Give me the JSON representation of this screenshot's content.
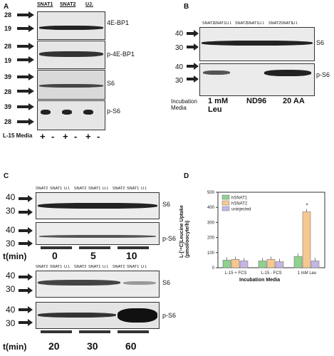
{
  "panels": {
    "a": {
      "letter": "A",
      "groups": [
        "SNAT1",
        "SNAT2",
        "UJ."
      ],
      "blots": [
        {
          "name": "4E-BP1",
          "mw": [
            "28",
            "19"
          ]
        },
        {
          "name": "p-4E-BP1",
          "mw": [
            "28",
            "19"
          ]
        },
        {
          "name": "S6",
          "mw": [
            "39",
            "28"
          ]
        },
        {
          "name": "p-S6",
          "mw": [
            "39",
            "28"
          ]
        }
      ],
      "media_label": "L-15 Media",
      "signs": [
        "+",
        "-",
        "+",
        "-",
        "+",
        "-"
      ]
    },
    "b": {
      "letter": "B",
      "lanes": [
        "SNAT2",
        "SNAT1",
        "U.I.",
        "SNAT2",
        "SNAT1",
        "U.I.",
        "SNAT2",
        "SNAT1",
        "U.I."
      ],
      "blots": [
        {
          "name": "S6",
          "mw": [
            "40",
            "30"
          ]
        },
        {
          "name": "p-S6",
          "mw": [
            "40",
            "30"
          ]
        }
      ],
      "media_label": [
        "Incubation",
        "Media"
      ],
      "conditions": [
        [
          "1 mM",
          "Leu"
        ],
        [
          "ND96"
        ],
        [
          "20 AA"
        ]
      ]
    },
    "c": {
      "letter": "C",
      "lanes": [
        "SNAT2",
        "SNAT1",
        "U.I.",
        "SNAT2",
        "SNAT1",
        "U.I.",
        "SNAT2",
        "SNAT1",
        "U.I."
      ],
      "top_blots": [
        {
          "name": "S6",
          "mw": [
            "40",
            "30"
          ]
        },
        {
          "name": "p-S6",
          "mw": [
            "40",
            "30"
          ]
        }
      ],
      "top_times": [
        "0",
        "5",
        "10"
      ],
      "bottom_blots": [
        {
          "name": "S6",
          "mw": [
            "40",
            "30"
          ]
        },
        {
          "name": "p-S6",
          "mw": [
            "40",
            "30"
          ]
        }
      ],
      "bottom_times": [
        "20",
        "30",
        "60"
      ],
      "time_label": "t(min)"
    },
    "d": {
      "letter": "D",
      "ylabel": [
        "L-[¹⁴C]Leucine Uptake",
        "(pmol/oocyte/h)"
      ],
      "xlabel": "Incubation Media",
      "yticks": [
        "0",
        "100",
        "200",
        "300",
        "400",
        "500"
      ],
      "legend": [
        {
          "name": "hSNAT1",
          "color": "#8fd18f"
        },
        {
          "name": "hSNAT2",
          "color": "#f6c890"
        },
        {
          "name": "uninjected",
          "color": "#c6b6e6"
        }
      ],
      "star": "*"
    }
  },
  "chart_data": {
    "type": "bar",
    "title": "",
    "xlabel": "Incubation Media",
    "ylabel": "L-[14C]Leucine Uptake (pmol/oocyte/h)",
    "ylim": [
      0,
      500
    ],
    "categories": [
      "L-15 + FCS",
      "L-15 - FCS",
      "1 mM Leu"
    ],
    "series": [
      {
        "name": "hSNAT1",
        "values": [
          50,
          45,
          75
        ],
        "color": "#8fd18f"
      },
      {
        "name": "hSNAT2",
        "values": [
          55,
          55,
          370
        ],
        "color": "#f6c890"
      },
      {
        "name": "uninjected",
        "values": [
          45,
          40,
          45
        ],
        "color": "#c6b6e6"
      }
    ],
    "legend_position": "top-left"
  }
}
